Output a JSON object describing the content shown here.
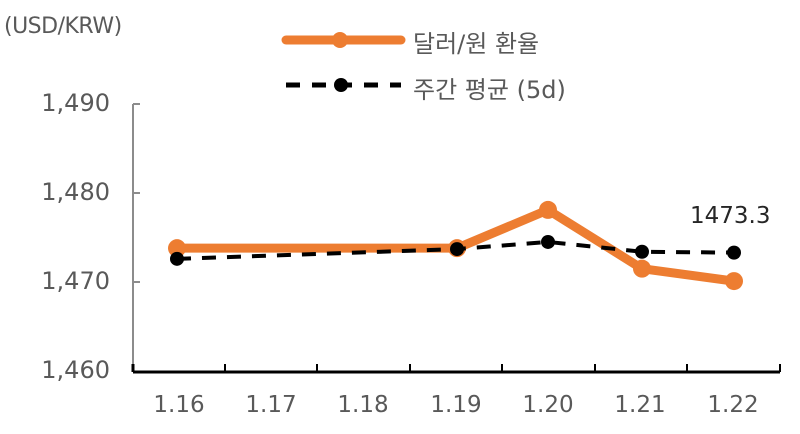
{
  "chart_data": {
    "type": "line",
    "title": "",
    "ylabel": "(USD/KRW)",
    "xlabel": "",
    "ylim": [
      1460,
      1490
    ],
    "yticks": [
      "1,460",
      "1,470",
      "1,480",
      "1,490"
    ],
    "categories": [
      "1.16",
      "1.17",
      "1.18",
      "1.19",
      "1.20",
      "1.21",
      "1.22"
    ],
    "grid": false,
    "legend_position": "top",
    "series": [
      {
        "name": "달러/원 환율",
        "style": "solid",
        "color": "#ED7D31",
        "points": [
          {
            "x": "1.16",
            "y": 1473.8
          },
          {
            "x": "1.19",
            "y": 1473.8
          },
          {
            "x": "1.20",
            "y": 1478.1
          },
          {
            "x": "1.21",
            "y": 1471.5
          },
          {
            "x": "1.22",
            "y": 1470.1
          }
        ]
      },
      {
        "name": "주간 평균 (5d)",
        "style": "dashed",
        "color": "#000000",
        "points": [
          {
            "x": "1.16",
            "y": 1472.6
          },
          {
            "x": "1.19",
            "y": 1473.7
          },
          {
            "x": "1.20",
            "y": 1474.5
          },
          {
            "x": "1.21",
            "y": 1473.4
          },
          {
            "x": "1.22",
            "y": 1473.3
          }
        ]
      }
    ],
    "annotations": [
      {
        "text": "1473.3",
        "x": "1.22",
        "series": "주간 평균 (5d)"
      }
    ]
  },
  "labels": {
    "unit": "(USD/KRW)",
    "legend_fx": "달러/원 환율",
    "legend_avg": "주간 평균 (5d)",
    "y": [
      "1,490",
      "1,480",
      "1,470",
      "1,460"
    ],
    "x": [
      "1.16",
      "1.17",
      "1.18",
      "1.19",
      "1.20",
      "1.21",
      "1.22"
    ],
    "annotation": "1473.3"
  }
}
